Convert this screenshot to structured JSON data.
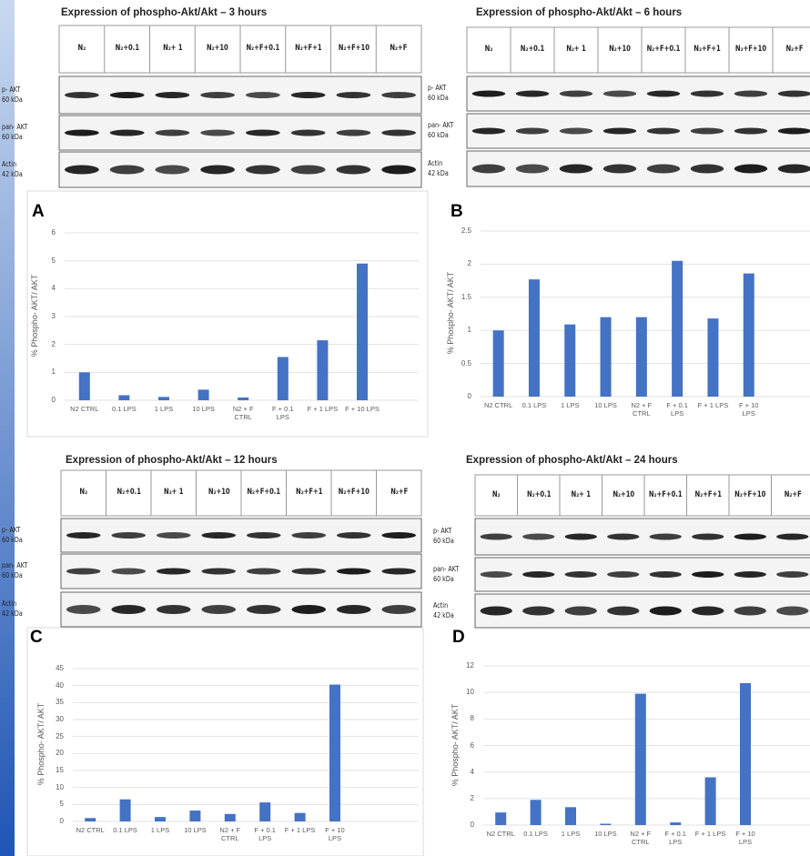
{
  "chart_data": [
    {
      "type": "bar",
      "panel": "A",
      "y_label": "% Phospho- AKT/ AKT",
      "color": "#4472c4",
      "grid": true,
      "categories": [
        "N2 CTRL",
        "0.1 LPS",
        "1 LPS",
        "10 LPS",
        "N2 + F CTRL",
        "F + 0.1 LPS",
        "F + 1 LPS",
        "F + 10 LPS"
      ],
      "values": [
        1.0,
        0.18,
        0.12,
        0.38,
        0.1,
        1.55,
        2.15,
        4.9
      ],
      "ylim": [
        0,
        6
      ],
      "yticks": [
        0,
        1,
        2,
        3,
        4,
        5,
        6
      ]
    },
    {
      "type": "bar",
      "panel": "B",
      "y_label": "% Phospho- AKT/ AKT",
      "color": "#4472c4",
      "grid": true,
      "categories": [
        "N2 CTRL",
        "0.1 LPS",
        "1 LPS",
        "10 LPS",
        "N2 + F CTRL",
        "F + 0.1 LPS",
        "F + 1 LPS",
        "F + 10 LPS"
      ],
      "values": [
        1.0,
        1.77,
        1.09,
        1.2,
        1.2,
        2.05,
        1.18,
        1.86
      ],
      "ylim": [
        0,
        2.5
      ],
      "yticks": [
        0,
        0.5,
        1,
        1.5,
        2,
        2.5
      ]
    },
    {
      "type": "bar",
      "panel": "C",
      "y_label": "% Phospho- AKT/ AKT",
      "color": "#4472c4",
      "grid": true,
      "categories": [
        "N2 CTRL",
        "0.1 LPS",
        "1 LPS",
        "10 LPS",
        "N2 + F CTRL",
        "F + 0.1 LPS",
        "F + 1 LPS",
        "F + 10 LPS"
      ],
      "values": [
        1.0,
        6.5,
        1.3,
        3.2,
        2.2,
        5.6,
        2.5,
        40.3
      ],
      "ylim": [
        0,
        45
      ],
      "yticks": [
        0,
        5,
        10,
        15,
        20,
        25,
        30,
        35,
        40,
        45
      ]
    },
    {
      "type": "bar",
      "panel": "D",
      "y_label": "% Phospho- AKT/ AKT",
      "color": "#4472c4",
      "grid": true,
      "categories": [
        "N2 CTRL",
        "0.1 LPS",
        "1 LPS",
        "10 LPS",
        "N2 + F CTRL",
        "F + 0.1 LPS",
        "F + 1 LPS",
        "F + 10 LPS"
      ],
      "values": [
        0.95,
        1.9,
        1.35,
        0.1,
        9.9,
        0.2,
        3.6,
        10.7
      ],
      "ylim": [
        0,
        12
      ],
      "yticks": [
        0,
        2,
        4,
        6,
        8,
        10,
        12
      ]
    }
  ],
  "blots": [
    {
      "title": "Expression  of phospho-Akt/Akt – 3 hours",
      "lanes": [
        "N₂",
        "N₂+0.1",
        "N₂+ 1",
        "N₂+10",
        "N₂+F+0.1",
        "N₂+F+1",
        "N₂+F+10",
        "N₂+F"
      ],
      "rows": [
        {
          "protein": "p- AKT",
          "size": "60 kDa"
        },
        {
          "protein": "pan- AKT",
          "size": "60 kDa"
        },
        {
          "protein": "Actin",
          "size": "42 kDa"
        }
      ]
    },
    {
      "title": "Expression  of phospho-Akt/Akt – 6 hours",
      "lanes": [
        "N₂",
        "N₂+0.1",
        "N₂+ 1",
        "N₂+10",
        "N₂+F+0.1",
        "N₂+F+1",
        "N₂+F+10",
        "N₂+F"
      ],
      "rows": [
        {
          "protein": "p- AKT",
          "size": "60 kDa"
        },
        {
          "protein": "pan- AKT",
          "size": "60 kDa"
        },
        {
          "protein": "Actin",
          "size": "42 kDa"
        }
      ]
    },
    {
      "title": "Expression  of phospho-Akt/Akt – 12 hours",
      "lanes": [
        "N₂",
        "N₂+0.1",
        "N₂+ 1",
        "N₂+10",
        "N₂+F+0.1",
        "N₂+F+1",
        "N₂+F+10",
        "N₂+F"
      ],
      "rows": [
        {
          "protein": "p- AKT",
          "size": "60 kDa"
        },
        {
          "protein": "pan- AKT",
          "size": "60 kDa"
        },
        {
          "protein": "Actin",
          "size": "42 kDa"
        }
      ]
    },
    {
      "title": "Expression  of phospho-Akt/Akt – 24 hours",
      "lanes": [
        "N₂",
        "N₂+0.1",
        "N₂+ 1",
        "N₂+10",
        "N₂+F+0.1",
        "N₂+F+1",
        "N₂+F+10",
        "N₂+F"
      ],
      "rows": [
        {
          "protein": "p- AKT",
          "size": "60 kDa"
        },
        {
          "protein": "pan- AKT",
          "size": "60 kDa"
        },
        {
          "protein": "Actin",
          "size": "42 kDa"
        }
      ]
    }
  ]
}
